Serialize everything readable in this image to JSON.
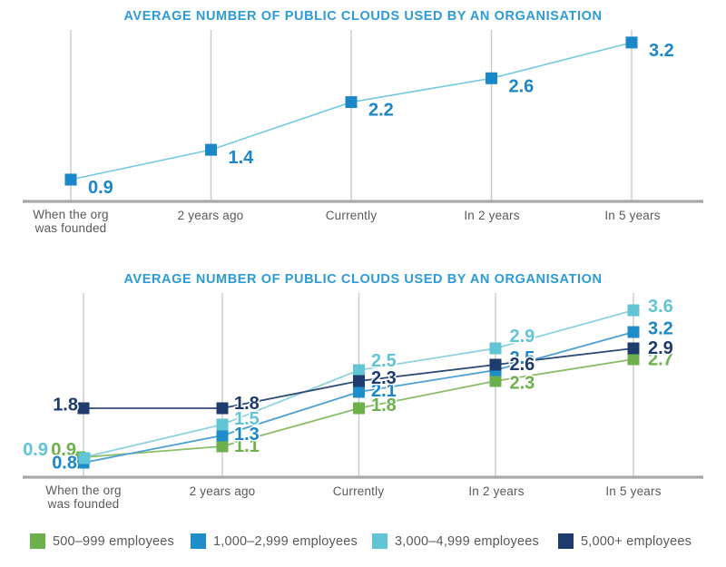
{
  "chart_data": [
    {
      "type": "line",
      "title": "AVERAGE NUMBER OF PUBLIC CLOUDS USED BY AN ORGANISATION",
      "title_color": "#2c9bd6",
      "categories": [
        "When the org\nwas founded",
        "2 years ago",
        "Currently",
        "In 2 years",
        "In 5 years"
      ],
      "series": [
        {
          "values": [
            0.9,
            1.4,
            2.2,
            2.6,
            3.2
          ],
          "color": "#1b86c8",
          "line_color": "#74c9e2",
          "label_color": "#1b86c8"
        }
      ],
      "value_labels": true,
      "ylim": [
        0,
        3.6
      ],
      "grid": "vertical-gridlines-only",
      "legend_position": "none"
    },
    {
      "type": "line",
      "title": "AVERAGE NUMBER OF PUBLIC CLOUDS USED BY AN ORGANISATION",
      "title_color": "#2c9bd6",
      "categories": [
        "When the org\nwas founded",
        "2 years ago",
        "Currently",
        "In 2 years",
        "In 5 years"
      ],
      "series": [
        {
          "name": "500–999 employees",
          "values": [
            0.9,
            1.1,
            1.8,
            2.3,
            2.7
          ],
          "color": "#6cb14b",
          "line_color": "#8abd68",
          "label_color": "#6cb14b"
        },
        {
          "name": "1,000–2,999 employees",
          "values": [
            0.8,
            1.3,
            2.1,
            2.5,
            3.2
          ],
          "color": "#1f8dca",
          "line_color": "#4d9fd4",
          "label_color": "#1b86c8"
        },
        {
          "name": "3,000–4,999 employees",
          "values": [
            0.9,
            1.5,
            2.5,
            2.9,
            3.6
          ],
          "color": "#62c5d6",
          "line_color": "#8ed2e2",
          "label_color": "#62c5d6"
        },
        {
          "name": "5,000+ employees",
          "values": [
            1.8,
            1.8,
            2.3,
            2.6,
            2.9
          ],
          "color": "#1d3b6d",
          "line_color": "#2f4c78",
          "label_color": "#1d3b6d"
        }
      ],
      "value_labels": true,
      "ylim": [
        0,
        3.6
      ],
      "grid": "vertical-gridlines-only",
      "legend_position": "bottom"
    }
  ],
  "style_colors": {
    "gridline": "#c9cacb",
    "axis": "#a7a9ac",
    "axis_text": "#58595b"
  }
}
